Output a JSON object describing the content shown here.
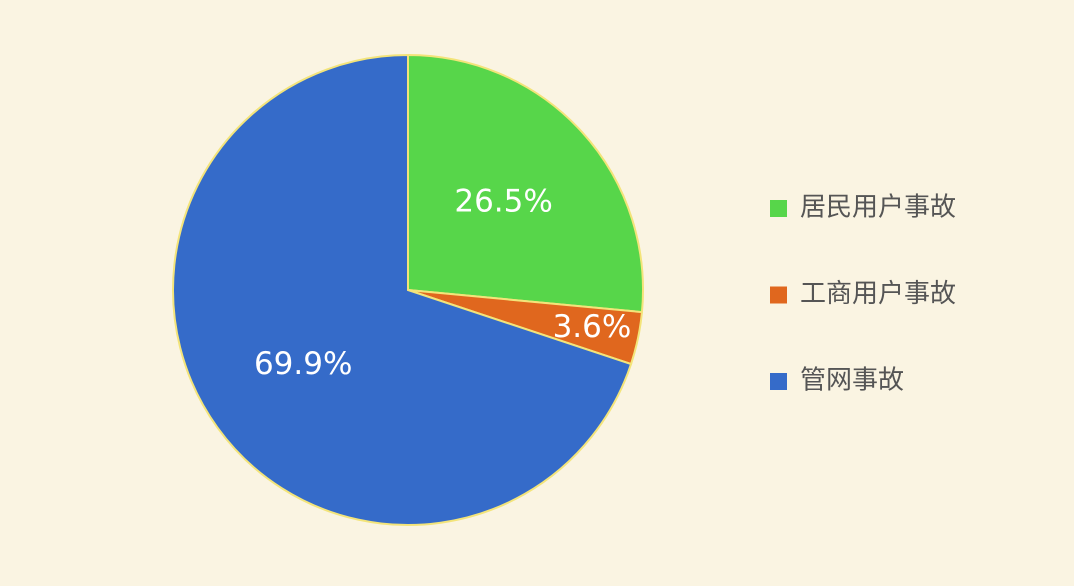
{
  "chart_data": {
    "type": "pie",
    "categories": [
      "居民用户事故",
      "工商用户事故",
      "管网事故"
    ],
    "values": [
      26.5,
      3.6,
      69.9
    ],
    "value_labels": [
      "26.5%",
      "3.6%",
      "69.9%"
    ],
    "colors": [
      "#57d64a",
      "#e0671e",
      "#356bc9"
    ]
  }
}
